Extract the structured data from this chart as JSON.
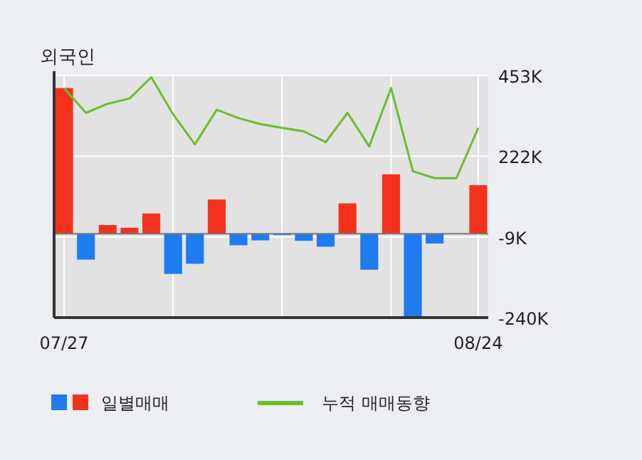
{
  "chart_data": {
    "type": "bar",
    "title": "외국인",
    "categories": [
      "07/27",
      null,
      null,
      null,
      null,
      null,
      null,
      null,
      null,
      null,
      null,
      null,
      null,
      null,
      null,
      null,
      null,
      null,
      null,
      "08/24"
    ],
    "series": [
      {
        "name": "일별매매",
        "values": [
          417,
          -74,
          25,
          17,
          58,
          -115,
          -86,
          98,
          -33,
          -19,
          -4,
          -20,
          -37,
          87,
          -103,
          170,
          -238,
          -28,
          0,
          139
        ],
        "colors": [
          "#f4321c",
          "#1e7bf0",
          "#f4321c",
          "#f4321c",
          "#f4321c",
          "#1e7bf0",
          "#1e7bf0",
          "#f4321c",
          "#1e7bf0",
          "#1e7bf0",
          "#1e7bf0",
          "#1e7bf0",
          "#1e7bf0",
          "#f4321c",
          "#1e7bf0",
          "#f4321c",
          "#1e7bf0",
          "#1e7bf0",
          "#1e7bf0",
          "#f4321c"
        ]
      },
      {
        "name": "누적 매매동향",
        "type": "line",
        "color": "#6cbd2e",
        "values": [
          417,
          346,
          372,
          387,
          448,
          342,
          256,
          355,
          331,
          314,
          303,
          293,
          262,
          346,
          250,
          417,
          179,
          159,
          159,
          303
        ]
      }
    ],
    "ylim": [
      -240,
      453
    ],
    "yticks": [
      {
        "value": 453,
        "label": "453K"
      },
      {
        "value": 222,
        "label": "222K"
      },
      {
        "value": -9,
        "label": "-9K"
      },
      {
        "value": -240,
        "label": "-240K"
      }
    ],
    "grid": true,
    "legend": "bottom",
    "marker": "none",
    "line_style": "solid"
  }
}
